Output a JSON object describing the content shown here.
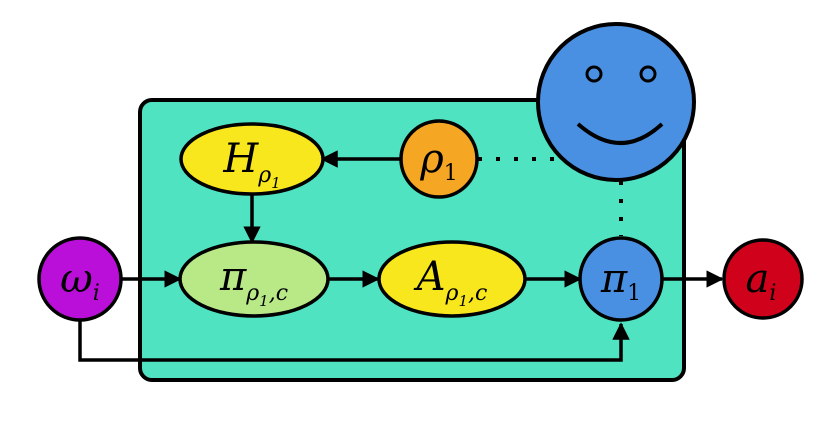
{
  "nodes": {
    "omega": {
      "base": "ω",
      "sub": "i",
      "color": "#b90fd9"
    },
    "h_rho": {
      "base": "H",
      "sub": "ρ",
      "sub2": "1",
      "color": "#f8e71c"
    },
    "rho": {
      "base": "ρ",
      "sub": "1",
      "color": "#f5a623"
    },
    "pi_rho_c": {
      "base": "π",
      "sub": "ρ",
      "sub2": "1",
      "sub3": ",c",
      "color": "#b8e986"
    },
    "a_rho_c": {
      "base": "A",
      "sub": "ρ",
      "sub2": "1",
      "sub3": ",c",
      "color": "#f8e71c"
    },
    "pi_1": {
      "base": "π",
      "sub": "1",
      "color": "#4a90e2"
    },
    "a_i": {
      "base": "a",
      "sub": "i",
      "color": "#d0021b"
    }
  },
  "box_color": "#50e3c2",
  "agent_color": "#4a90e2",
  "agent_icon": "smiley-face-icon"
}
